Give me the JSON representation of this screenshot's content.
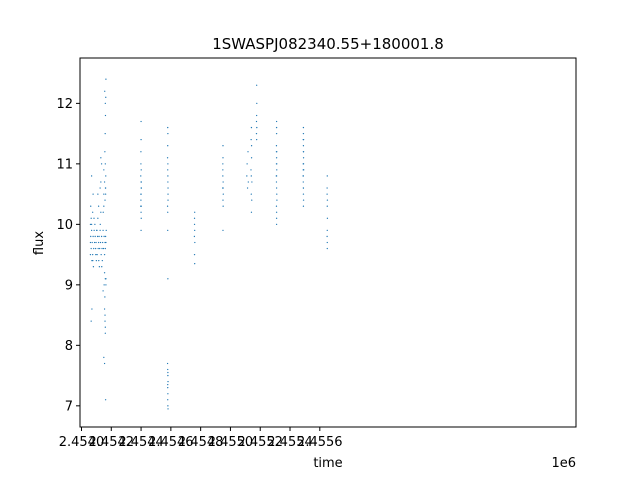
{
  "chart_data": {
    "type": "scatter",
    "title": "1SWASPJ082340.55+180001.8",
    "xlabel": "time",
    "ylabel": "flux",
    "x_offset_label": "1e6",
    "xlim": [
      2453990,
      2457320
    ],
    "ylim": [
      6.65,
      12.75
    ],
    "x_ticks": [
      2454000,
      2454200,
      2454400,
      2454600,
      2454800,
      2455000,
      2455200,
      2455400,
      2455600
    ],
    "x_tick_labels": [
      "2.4540",
      "2.4542",
      "2.4544",
      "2.4546",
      "2.4548",
      "2.4550",
      "2.4552",
      "2.4554",
      "2.4556"
    ],
    "y_ticks": [
      7,
      8,
      9,
      10,
      11,
      12
    ],
    "y_tick_labels": [
      "7",
      "8",
      "9",
      "10",
      "11",
      "12"
    ],
    "grid": false,
    "marker_color": "#1f77b4",
    "series": [
      {
        "x": [
          2454060,
          2454062,
          2454065,
          2454068,
          2454072,
          2454075,
          2454078,
          2454082,
          2454085,
          2454088,
          2454092,
          2454095,
          2454098,
          2454102,
          2454105,
          2454108,
          2454112,
          2454115,
          2454118,
          2454122,
          2454125,
          2454128,
          2454132,
          2454135,
          2454138,
          2454142,
          2454145,
          2454148,
          2454152,
          2454155,
          2454158,
          2454160,
          2454162,
          2454164,
          2454166,
          2454060,
          2454065,
          2454070,
          2454075,
          2454080,
          2454090,
          2454100,
          2454110,
          2454120,
          2454130,
          2454140,
          2454150,
          2454155,
          2454158,
          2454160,
          2454162,
          2454164,
          2454060,
          2454068,
          2454076,
          2454084,
          2454096,
          2454104,
          2454116,
          2454126,
          2454136,
          2454146,
          2454152,
          2454157,
          2454161,
          2454163,
          2454150,
          2454155,
          2454158,
          2454160,
          2454157,
          2454159,
          2454161,
          2454163,
          2454156,
          2454160,
          2454164,
          2454150,
          2454155,
          2454162,
          2454158,
          2454160,
          2454155,
          2454162,
          2454160,
          2454164,
          2454065,
          2454070,
          2454062,
          2454068,
          2454078,
          2454130,
          2454135,
          2454145,
          2454110,
          2454115,
          2454125,
          2454130,
          2454150
        ],
        "y": [
          9.7,
          9.8,
          9.6,
          9.9,
          9.7,
          9.5,
          9.8,
          9.6,
          9.9,
          9.7,
          9.8,
          9.6,
          9.7,
          9.9,
          9.5,
          9.8,
          9.6,
          9.7,
          9.8,
          9.6,
          9.9,
          9.7,
          9.5,
          9.8,
          9.6,
          9.7,
          9.9,
          9.6,
          9.8,
          9.5,
          9.7,
          9.6,
          9.8,
          9.7,
          9.9,
          10.0,
          10.1,
          9.4,
          10.2,
          9.3,
          10.0,
          9.4,
          10.1,
          9.3,
          10.2,
          9.4,
          10.3,
          9.2,
          10.4,
          9.1,
          10.5,
          9.0,
          9.5,
          10.0,
          9.4,
          10.1,
          9.5,
          9.9,
          9.4,
          10.0,
          9.3,
          10.2,
          9.0,
          8.8,
          10.6,
          10.8,
          10.9,
          8.6,
          8.4,
          8.3,
          11.2,
          11.5,
          11.8,
          12.1,
          12.2,
          12.0,
          12.4,
          7.8,
          7.7,
          7.1,
          8.5,
          8.2,
          10.7,
          10.6,
          11.0,
          9.1,
          8.4,
          8.6,
          10.3,
          10.8,
          10.5,
          11.1,
          11.0,
          8.9,
          10.5,
          10.3,
          10.6,
          10.7,
          10.5
        ]
      },
      {
        "x": [
          2454398,
          2454399,
          2454400,
          2454401,
          2454402,
          2454398,
          2454399,
          2454400,
          2454401,
          2454402,
          2454399,
          2454400,
          2454401,
          2454399,
          2454400,
          2454400,
          2454400,
          2454401
        ],
        "y": [
          10.3,
          10.5,
          10.7,
          10.9,
          10.6,
          10.8,
          10.4,
          10.2,
          10.6,
          10.7,
          11.0,
          10.5,
          10.3,
          11.2,
          11.4,
          11.7,
          9.9,
          10.1
        ]
      },
      {
        "x": [
          2454578,
          2454579,
          2454580,
          2454581,
          2454578,
          2454579,
          2454580,
          2454581,
          2454579,
          2454580,
          2454579,
          2454580,
          2454581,
          2454579,
          2454580,
          2454578,
          2454579,
          2454580,
          2454581,
          2454579,
          2454580,
          2454579,
          2454580,
          2454581,
          2454579,
          2454580
        ],
        "y": [
          11.1,
          10.9,
          10.7,
          10.5,
          10.3,
          11.3,
          11.0,
          10.6,
          10.2,
          11.5,
          11.6,
          10.8,
          10.4,
          9.9,
          9.1,
          7.7,
          7.6,
          7.5,
          7.4,
          7.3,
          7.2,
          7.1,
          7.0,
          6.95,
          7.35,
          7.55
        ]
      },
      {
        "x": [
          2454758,
          2454759,
          2454760,
          2454761,
          2454759,
          2454760,
          2454759,
          2454760
        ],
        "y": [
          9.8,
          10.0,
          9.9,
          9.7,
          10.1,
          10.2,
          9.5,
          9.35
        ]
      },
      {
        "x": [
          2454948,
          2454949,
          2454950,
          2454951,
          2454952,
          2454949,
          2454950,
          2454951,
          2454950,
          2454950,
          2454949,
          2454951
        ],
        "y": [
          10.6,
          10.8,
          10.4,
          10.7,
          10.5,
          10.9,
          11.1,
          10.3,
          11.3,
          9.9,
          11.0,
          10.6
        ]
      },
      {
        "x": [
          2455110,
          2455112,
          2455115,
          2455118,
          2455120,
          2455138,
          2455140,
          2455142,
          2455144,
          2455139,
          2455141,
          2455143,
          2455140,
          2455142,
          2455141,
          2455175,
          2455176,
          2455177,
          2455176,
          2455175,
          2455177,
          2455176
        ],
        "y": [
          10.8,
          11.0,
          10.6,
          11.2,
          10.7,
          10.9,
          10.5,
          11.1,
          10.7,
          11.4,
          11.6,
          10.4,
          10.8,
          11.3,
          10.2,
          11.5,
          11.8,
          12.0,
          12.3,
          11.7,
          11.6,
          11.4
        ]
      },
      {
        "x": [
          2455308,
          2455309,
          2455310,
          2455311,
          2455312,
          2455309,
          2455310,
          2455311,
          2455310,
          2455309,
          2455310,
          2455311,
          2455310,
          2455309,
          2455310,
          2455311,
          2455310,
          2455310,
          2455310,
          2455309
        ],
        "y": [
          10.8,
          11.0,
          10.6,
          11.2,
          10.4,
          11.3,
          10.2,
          10.9,
          11.5,
          10.7,
          11.1,
          10.5,
          11.7,
          10.3,
          10.0,
          11.0,
          10.1,
          11.6,
          10.8,
          11.2
        ]
      },
      {
        "x": [
          2455488,
          2455489,
          2455490,
          2455491,
          2455492,
          2455489,
          2455490,
          2455491,
          2455490,
          2455489,
          2455490,
          2455491,
          2455490,
          2455489,
          2455490,
          2455491,
          2455490,
          2455489,
          2455490,
          2455491,
          2455490,
          2455490
        ],
        "y": [
          10.8,
          11.0,
          10.6,
          11.2,
          10.9,
          11.4,
          10.5,
          11.1,
          11.5,
          10.7,
          11.3,
          10.4,
          11.6,
          10.9,
          10.3,
          11.0,
          11.2,
          10.8,
          10.6,
          11.4,
          11.0,
          10.9
        ]
      },
      {
        "x": [
          2455649,
          2455650,
          2455651,
          2455650,
          2455649,
          2455650,
          2455651,
          2455650,
          2455650,
          2455649
        ],
        "y": [
          10.5,
          10.3,
          10.1,
          9.9,
          9.8,
          9.7,
          10.4,
          9.6,
          10.8,
          10.6
        ]
      }
    ]
  }
}
